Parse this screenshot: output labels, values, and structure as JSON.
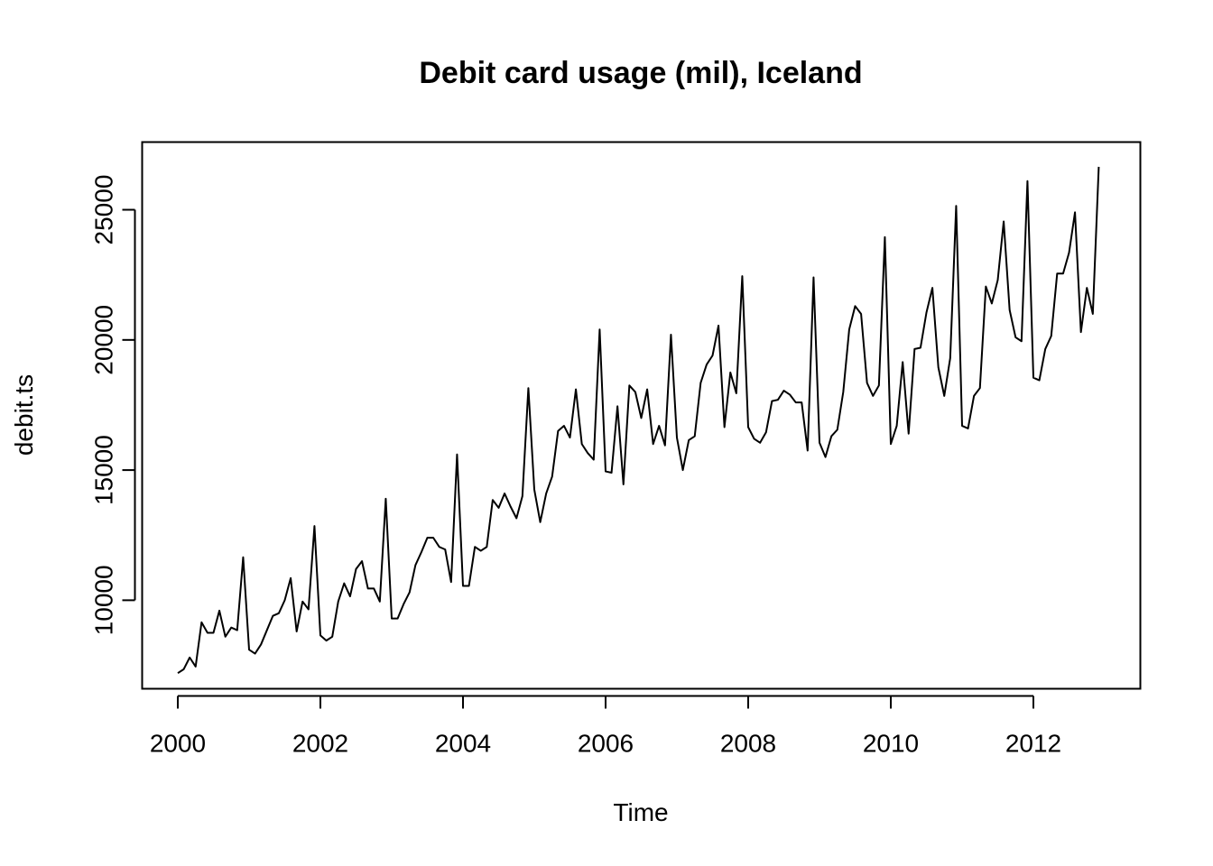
{
  "chart_data": {
    "type": "line",
    "title": "Debit card usage (mil), Iceland",
    "xlabel": "Time",
    "ylabel": "debit.ts",
    "xlim": [
      1999.5,
      2013.5
    ],
    "ylim": [
      6600,
      27600
    ],
    "x_ticks": [
      "2000",
      "2002",
      "2004",
      "2006",
      "2008",
      "2010",
      "2012"
    ],
    "y_ticks": [
      "10000",
      "15000",
      "20000",
      "25000"
    ],
    "grid": false,
    "legend": "none",
    "start": 2000,
    "frequency": 12,
    "series": [
      {
        "values": [
          7200,
          7350,
          7800,
          7450,
          9150,
          8750,
          8750,
          9600,
          8600,
          8950,
          8850,
          11650,
          8100,
          7950,
          8300,
          8850,
          9400,
          9500,
          10000,
          10850,
          8800,
          9950,
          9650,
          12850,
          8650,
          8450,
          8600,
          9950,
          10650,
          10150,
          11200,
          11500,
          10450,
          10450,
          9950,
          13900,
          9300,
          9300,
          9850,
          10300,
          11350,
          11850,
          12400,
          12400,
          12050,
          11950,
          10700,
          15600,
          10550,
          10550,
          12050,
          11900,
          12050,
          13850,
          13550,
          14100,
          13600,
          13150,
          14000,
          18150,
          14250,
          13000,
          14100,
          14750,
          16500,
          16700,
          16250,
          18100,
          16000,
          15650,
          15400,
          20400,
          14950,
          14900,
          17450,
          14450,
          18250,
          18000,
          17000,
          18100,
          16000,
          16700,
          15950,
          20200,
          16250,
          15000,
          16150,
          16300,
          18350,
          19050,
          19400,
          20550,
          16650,
          18750,
          17950,
          22450,
          16650,
          16200,
          16050,
          16450,
          17650,
          17700,
          18050,
          17900,
          17600,
          17600,
          15750,
          22400,
          16050,
          15500,
          16300,
          16550,
          18000,
          20400,
          21300,
          21000,
          18350,
          17850,
          18250,
          23950,
          16000,
          16700,
          19150,
          16400,
          19650,
          19700,
          21050,
          22000,
          18950,
          17850,
          19300,
          25150,
          16700,
          16600,
          17850,
          18150,
          22050,
          21400,
          22300,
          24550,
          21150,
          20100,
          19950,
          26100,
          18550,
          18450,
          19650,
          20150,
          22550,
          22550,
          23350,
          24900,
          20300,
          22000,
          21000,
          26650
        ]
      }
    ]
  }
}
